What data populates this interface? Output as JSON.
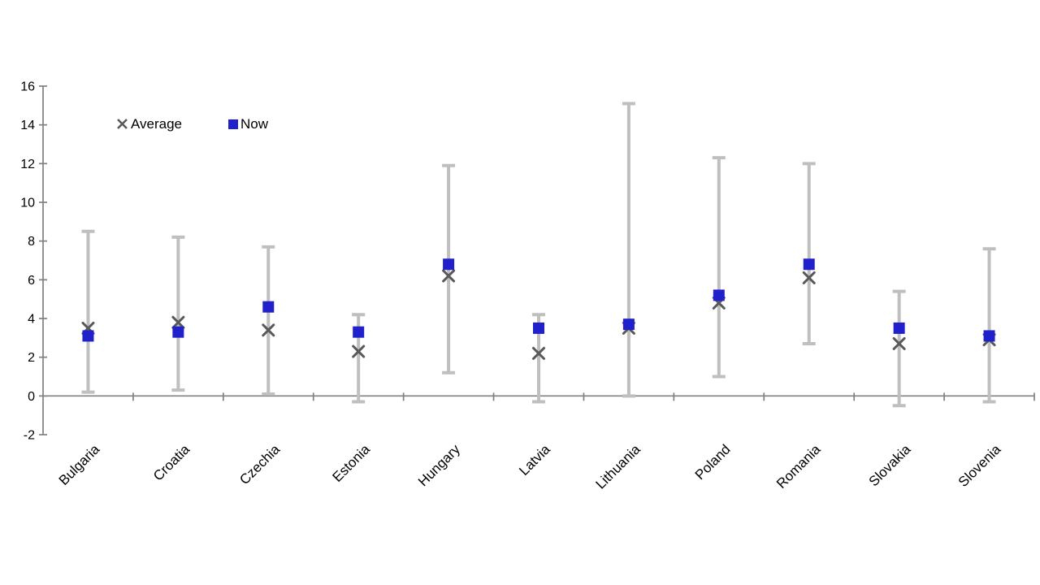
{
  "chart_data": {
    "type": "scatter",
    "title": "",
    "xlabel": "",
    "ylabel": "",
    "categories": [
      "Bulgaria",
      "Croatia",
      "Czechia",
      "Estonia",
      "Hungary",
      "Latvia",
      "Lithuania",
      "Poland",
      "Romania",
      "Slovakia",
      "Slovenia"
    ],
    "series": [
      {
        "name": "Average",
        "marker": "x",
        "color": "#595959",
        "values": [
          3.5,
          3.8,
          3.4,
          2.3,
          6.2,
          2.2,
          3.5,
          4.8,
          6.1,
          2.7,
          2.9
        ]
      },
      {
        "name": "Now",
        "marker": "square",
        "color": "#2121CB",
        "values": [
          3.1,
          3.3,
          4.6,
          3.3,
          6.8,
          3.5,
          3.7,
          5.2,
          6.8,
          3.5,
          3.1
        ]
      }
    ],
    "error_bars": {
      "color": "#BFBFBF",
      "low": [
        0.2,
        0.3,
        0.1,
        -0.3,
        1.2,
        -0.3,
        0.0,
        1.0,
        2.7,
        -0.5,
        -0.3
      ],
      "high": [
        8.5,
        8.2,
        7.7,
        4.2,
        11.9,
        4.2,
        15.1,
        12.3,
        12.0,
        5.4,
        7.6
      ]
    },
    "ylim": [
      -2,
      16
    ],
    "ytick_step": 2,
    "grid": false,
    "legend_position": "top-left-inside",
    "axis_color": "#808080",
    "text_color": "#000000"
  }
}
